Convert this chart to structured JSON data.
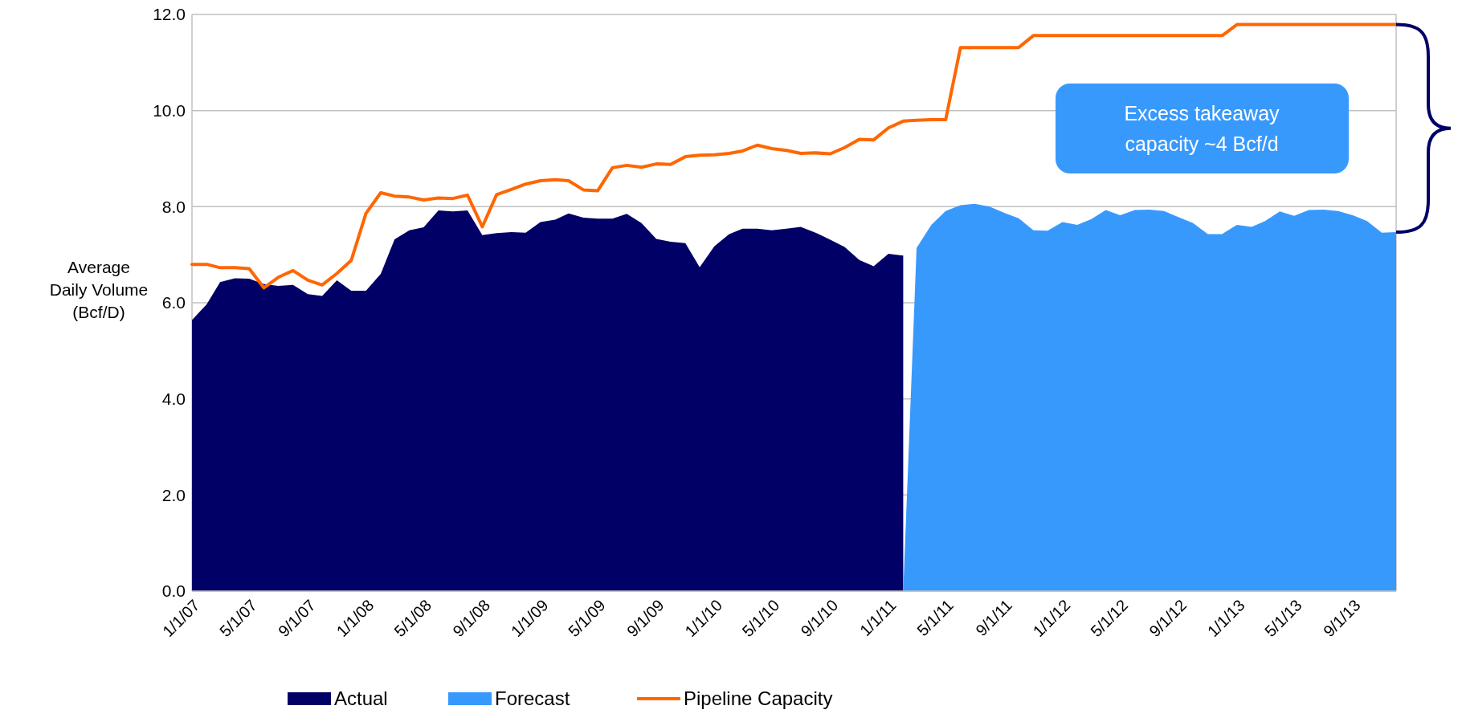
{
  "chart_data": {
    "type": "area",
    "ylabel": "Average Daily Volume (Bcf/D)",
    "x": [
      "2007-01",
      "2007-02",
      "2007-03",
      "2007-04",
      "2007-05",
      "2007-06",
      "2007-07",
      "2007-08",
      "2007-09",
      "2007-10",
      "2007-11",
      "2007-12",
      "2008-01",
      "2008-02",
      "2008-03",
      "2008-04",
      "2008-05",
      "2008-06",
      "2008-07",
      "2008-08",
      "2008-09",
      "2008-10",
      "2008-11",
      "2008-12",
      "2009-01",
      "2009-02",
      "2009-03",
      "2009-04",
      "2009-05",
      "2009-06",
      "2009-07",
      "2009-08",
      "2009-09",
      "2009-10",
      "2009-11",
      "2009-12",
      "2010-01",
      "2010-02",
      "2010-03",
      "2010-04",
      "2010-05",
      "2010-06",
      "2010-07",
      "2010-08",
      "2010-09",
      "2010-10",
      "2010-11",
      "2010-12",
      "2011-01",
      "2011-02",
      "2011-03",
      "2011-04",
      "2011-05",
      "2011-06",
      "2011-07",
      "2011-08",
      "2011-09",
      "2011-10",
      "2011-11",
      "2011-12",
      "2012-01",
      "2012-02",
      "2012-03",
      "2012-04",
      "2012-05",
      "2012-06",
      "2012-07",
      "2012-08",
      "2012-09",
      "2012-10",
      "2012-11",
      "2012-12",
      "2013-01",
      "2013-02",
      "2013-03",
      "2013-04",
      "2013-05",
      "2013-06",
      "2013-07",
      "2013-08",
      "2013-09",
      "2013-10",
      "2013-11",
      "2013-12"
    ],
    "series": [
      {
        "name": "Actual",
        "color": "#000066",
        "values": [
          5.64,
          5.97,
          6.43,
          6.51,
          6.5,
          6.39,
          6.35,
          6.37,
          6.18,
          6.14,
          6.47,
          6.25,
          6.25,
          6.6,
          7.32,
          7.51,
          7.57,
          7.92,
          7.9,
          7.92,
          7.41,
          7.45,
          7.47,
          7.46,
          7.68,
          7.73,
          7.86,
          7.77,
          7.75,
          7.75,
          7.85,
          7.66,
          7.33,
          7.27,
          7.24,
          6.74,
          7.18,
          7.43,
          7.54,
          7.54,
          7.51,
          7.54,
          7.58,
          7.46,
          7.31,
          7.16,
          6.89,
          6.76,
          7.02,
          6.98,
          null,
          null,
          null,
          null,
          null,
          null,
          null,
          null,
          null,
          null,
          null,
          null,
          null,
          null,
          null,
          null,
          null,
          null,
          null,
          null,
          null,
          null,
          null,
          null,
          null,
          null,
          null,
          null,
          null,
          null,
          null,
          null,
          null,
          null
        ]
      },
      {
        "name": "Forecast",
        "color": "#3899fd",
        "values": [
          null,
          null,
          null,
          null,
          null,
          null,
          null,
          null,
          null,
          null,
          null,
          null,
          null,
          null,
          null,
          null,
          null,
          null,
          null,
          null,
          null,
          null,
          null,
          null,
          null,
          null,
          null,
          null,
          null,
          null,
          null,
          null,
          null,
          null,
          null,
          null,
          null,
          null,
          null,
          null,
          null,
          null,
          null,
          null,
          null,
          null,
          null,
          null,
          null,
          0,
          7.14,
          7.62,
          7.91,
          8.03,
          8.06,
          8.0,
          7.87,
          7.76,
          7.51,
          7.5,
          7.68,
          7.62,
          7.74,
          7.93,
          7.82,
          7.93,
          7.94,
          7.91,
          7.78,
          7.66,
          7.43,
          7.43,
          7.62,
          7.58,
          7.7,
          7.9,
          7.81,
          7.93,
          7.94,
          7.91,
          7.82,
          7.7,
          7.46,
          7.47
        ]
      },
      {
        "name": "Pipeline Capacity",
        "type": "line",
        "color": "#ff6600",
        "values": [
          6.8,
          6.8,
          6.73,
          6.73,
          6.71,
          6.31,
          6.53,
          6.67,
          6.47,
          6.37,
          6.61,
          6.88,
          7.86,
          8.29,
          8.22,
          8.2,
          8.14,
          8.18,
          8.17,
          8.24,
          7.58,
          8.25,
          8.36,
          8.47,
          8.54,
          8.56,
          8.54,
          8.35,
          8.33,
          8.81,
          8.86,
          8.82,
          8.89,
          8.88,
          9.04,
          9.07,
          9.08,
          9.11,
          9.16,
          9.28,
          9.21,
          9.17,
          9.11,
          9.12,
          9.1,
          9.23,
          9.4,
          9.39,
          9.64,
          9.78,
          9.8,
          9.81,
          9.81,
          11.31,
          11.31,
          11.31,
          11.31,
          11.31,
          11.56,
          11.56,
          11.56,
          11.56,
          11.56,
          11.56,
          11.56,
          11.56,
          11.56,
          11.56,
          11.56,
          11.56,
          11.56,
          11.56,
          11.79,
          11.79,
          11.79,
          11.79,
          11.79,
          11.79,
          11.79,
          11.79,
          11.79,
          11.79,
          11.79,
          11.79
        ]
      }
    ],
    "xlim": [
      "2007-01",
      "2013-12"
    ],
    "xticks": [
      {
        "value": "2007-01",
        "label": "1/1/07"
      },
      {
        "value": "2007-05",
        "label": "5/1/07"
      },
      {
        "value": "2007-09",
        "label": "9/1/07"
      },
      {
        "value": "2008-01",
        "label": "1/1/08"
      },
      {
        "value": "2008-05",
        "label": "5/1/08"
      },
      {
        "value": "2008-09",
        "label": "9/1/08"
      },
      {
        "value": "2009-01",
        "label": "1/1/09"
      },
      {
        "value": "2009-05",
        "label": "5/1/09"
      },
      {
        "value": "2009-09",
        "label": "9/1/09"
      },
      {
        "value": "2010-01",
        "label": "1/1/10"
      },
      {
        "value": "2010-05",
        "label": "5/1/10"
      },
      {
        "value": "2010-09",
        "label": "9/1/10"
      },
      {
        "value": "2011-01",
        "label": "1/1/11"
      },
      {
        "value": "2011-05",
        "label": "5/1/11"
      },
      {
        "value": "2011-09",
        "label": "9/1/11"
      },
      {
        "value": "2012-01",
        "label": "1/1/12"
      },
      {
        "value": "2012-05",
        "label": "5/1/12"
      },
      {
        "value": "2012-09",
        "label": "9/1/12"
      },
      {
        "value": "2013-01",
        "label": "1/1/13"
      },
      {
        "value": "2013-05",
        "label": "5/1/13"
      },
      {
        "value": "2013-09",
        "label": "9/1/13"
      }
    ],
    "ylim": [
      0,
      12
    ],
    "yticks": [
      {
        "value": 0,
        "label": "0.0"
      },
      {
        "value": 2,
        "label": "2.0"
      },
      {
        "value": 4,
        "label": "4.0"
      },
      {
        "value": 6,
        "label": "6.0"
      },
      {
        "value": 8,
        "label": "8.0"
      },
      {
        "value": 10,
        "label": "10.0"
      },
      {
        "value": 12,
        "label": "12.0"
      }
    ],
    "grid": "y",
    "legend": "bottom",
    "annotations": [
      "Excess takeaway capacity ~4 Bcf/d"
    ]
  }
}
